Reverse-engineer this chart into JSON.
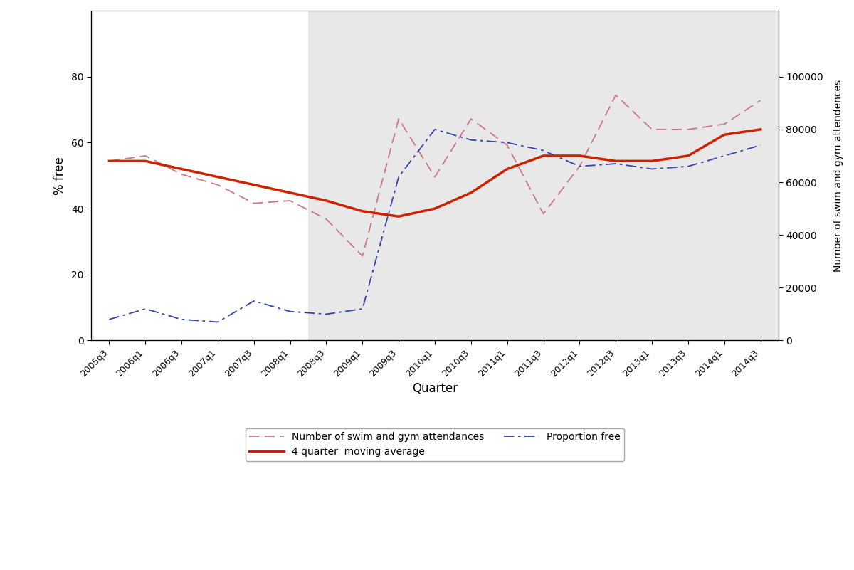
{
  "quarters_seq": [
    "2005q3",
    "2006q1",
    "2006q3",
    "2007q1",
    "2007q3",
    "2008q1",
    "2008q3",
    "2008q3",
    "2009q1",
    "2009q3",
    "2010q1",
    "2010q3",
    "2011q1",
    "2011q3",
    "2012q1",
    "2012q3",
    "2013q1",
    "2013q3",
    "2014q1",
    "2014q3"
  ],
  "attend": [
    68000,
    70000,
    63000,
    59000,
    60000,
    53000,
    52000,
    32000,
    47000,
    84000,
    74000,
    62000,
    48000,
    84000,
    52000,
    80000,
    53000,
    79000,
    82000,
    91000,
    80000,
    80000,
    82000,
    93000,
    80000,
    82000,
    91000,
    65000
  ],
  "prop": [
    8000,
    12000,
    8000,
    7000,
    15000,
    11000,
    10000,
    11000,
    11000,
    21000,
    12000,
    13000,
    22000,
    13000,
    30000,
    13000,
    62000,
    72000,
    80000,
    76000,
    75000,
    72000,
    66000,
    67000,
    65000,
    67000,
    70000,
    72000,
    68000,
    74000
  ],
  "ma": [
    68000,
    67000,
    65000,
    62000,
    59000,
    57000,
    55000,
    53000,
    51000,
    49000,
    47000,
    46000,
    44000,
    43000,
    43000,
    44000,
    46000,
    50000,
    55000,
    60000,
    65000,
    68000,
    70000,
    70000,
    70000,
    69000,
    68000,
    68000,
    70000,
    73000,
    75000,
    77000,
    79000,
    80000,
    80000,
    80000,
    80000,
    79000
  ],
  "xlabel": "Quarter",
  "ylabel_left_outer": "% free",
  "ylabel_left_inner": "Number of swim and gym attendences",
  "shaded_start_label": "2008q3",
  "bg_color": "#e8e8e8",
  "line_color_attend": "#cc7788",
  "line_color_ma": "#cc2200",
  "line_color_prop": "#3344aa",
  "legend_attend": "Number of swim and gym attendances",
  "legend_ma": "4 quarter  moving average",
  "legend_prop": "Proportion free"
}
